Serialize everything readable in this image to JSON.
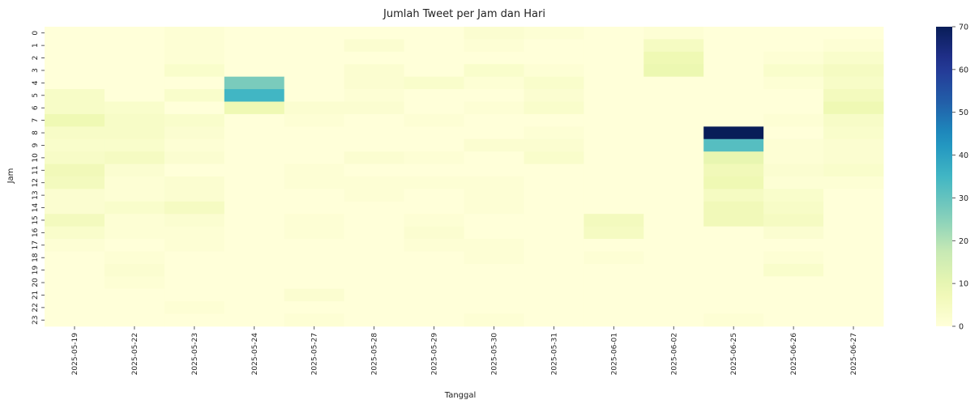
{
  "chart_data": {
    "type": "heatmap",
    "title": "Jumlah Tweet per Jam dan Hari",
    "xlabel": "Tanggal",
    "ylabel": "Jam",
    "x_categories": [
      "2025-05-19",
      "2025-05-22",
      "2025-05-23",
      "2025-05-24",
      "2025-05-27",
      "2025-05-28",
      "2025-05-29",
      "2025-05-30",
      "2025-05-31",
      "2025-06-01",
      "2025-06-02",
      "2025-06-25",
      "2025-06-26",
      "2025-06-27"
    ],
    "y_categories": [
      "0",
      "1",
      "2",
      "3",
      "4",
      "5",
      "6",
      "7",
      "8",
      "9",
      "10",
      "11",
      "12",
      "13",
      "14",
      "15",
      "16",
      "17",
      "18",
      "19",
      "20",
      "21",
      "22",
      "23"
    ],
    "colorbar": {
      "min": 0,
      "max": 70,
      "ticks": [
        0,
        10,
        20,
        30,
        40,
        50,
        60,
        70
      ],
      "colormap": "YlGnBu"
    },
    "values": [
      [
        0,
        0,
        1,
        0,
        0,
        0,
        0,
        2,
        1,
        0,
        1,
        0,
        0,
        0
      ],
      [
        0,
        0,
        1,
        0,
        0,
        2,
        0,
        1,
        0,
        0,
        5,
        0,
        0,
        1
      ],
      [
        0,
        0,
        1,
        0,
        0,
        0,
        0,
        0,
        0,
        0,
        8,
        0,
        1,
        3
      ],
      [
        0,
        0,
        3,
        0,
        0,
        2,
        0,
        3,
        1,
        0,
        9,
        0,
        3,
        5
      ],
      [
        0,
        0,
        0,
        27,
        0,
        2,
        3,
        1,
        3,
        0,
        0,
        0,
        1,
        4
      ],
      [
        4,
        0,
        3,
        35,
        0,
        1,
        0,
        0,
        2,
        0,
        0,
        0,
        0,
        6
      ],
      [
        4,
        3,
        0,
        8,
        2,
        2,
        0,
        1,
        3,
        0,
        0,
        0,
        0,
        8
      ],
      [
        8,
        4,
        3,
        0,
        1,
        0,
        1,
        0,
        0,
        0,
        0,
        0,
        1,
        4
      ],
      [
        4,
        4,
        2,
        0,
        0,
        0,
        0,
        0,
        1,
        0,
        0,
        70,
        0,
        3
      ],
      [
        3,
        3,
        1,
        0,
        0,
        0,
        0,
        2,
        2,
        0,
        0,
        32,
        1,
        2
      ],
      [
        4,
        5,
        2,
        0,
        0,
        2,
        1,
        0,
        3,
        0,
        0,
        10,
        1,
        2
      ],
      [
        7,
        2,
        0,
        0,
        1,
        0,
        0,
        0,
        0,
        0,
        0,
        7,
        2,
        3
      ],
      [
        6,
        1,
        2,
        0,
        1,
        1,
        1,
        1,
        0,
        0,
        0,
        8,
        1,
        1
      ],
      [
        2,
        1,
        2,
        0,
        0,
        1,
        0,
        1,
        0,
        0,
        0,
        5,
        3,
        0
      ],
      [
        2,
        3,
        5,
        0,
        0,
        0,
        0,
        1,
        0,
        0,
        0,
        7,
        4,
        0
      ],
      [
        6,
        1,
        2,
        0,
        1,
        0,
        1,
        0,
        0,
        6,
        0,
        7,
        5,
        0
      ],
      [
        3,
        1,
        1,
        0,
        1,
        0,
        2,
        0,
        0,
        5,
        0,
        0,
        2,
        0
      ],
      [
        1,
        0,
        1,
        0,
        0,
        0,
        1,
        1,
        0,
        0,
        0,
        0,
        0,
        0
      ],
      [
        0,
        1,
        0,
        0,
        0,
        0,
        0,
        1,
        0,
        1,
        0,
        0,
        1,
        0
      ],
      [
        0,
        2,
        0,
        0,
        0,
        0,
        0,
        0,
        0,
        0,
        0,
        0,
        3,
        0
      ],
      [
        0,
        1,
        0,
        0,
        0,
        0,
        0,
        0,
        0,
        0,
        0,
        0,
        0,
        0
      ],
      [
        0,
        0,
        0,
        0,
        2,
        0,
        0,
        0,
        0,
        0,
        0,
        0,
        0,
        0
      ],
      [
        0,
        0,
        1,
        0,
        0,
        0,
        0,
        0,
        0,
        0,
        0,
        0,
        0,
        0
      ],
      [
        0,
        0,
        0,
        0,
        1,
        0,
        0,
        1,
        0,
        0,
        0,
        1,
        0,
        0
      ]
    ]
  }
}
